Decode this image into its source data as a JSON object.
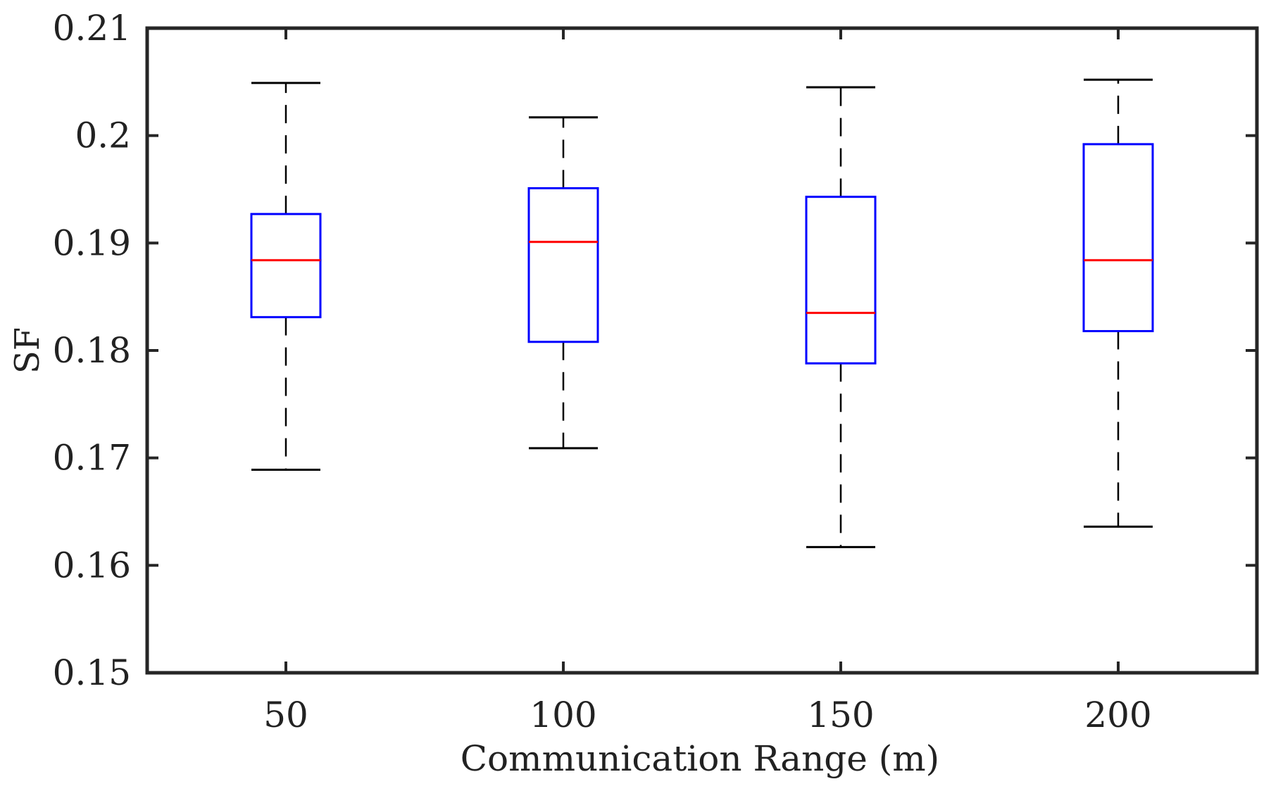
{
  "chart_data": {
    "type": "box",
    "title": "",
    "xlabel": "Communication Range (m)",
    "ylabel": "SF",
    "categories": [
      "50",
      "100",
      "150",
      "200"
    ],
    "yticks": [
      "0.15",
      "0.16",
      "0.17",
      "0.18",
      "0.19",
      "0.2",
      "0.21"
    ],
    "ylim": [
      0.15,
      0.21
    ],
    "grid": false,
    "boxes": [
      {
        "category": "50",
        "whisker_low": 0.1689,
        "q1": 0.1831,
        "median": 0.1884,
        "q3": 0.1927,
        "whisker_high": 0.2049
      },
      {
        "category": "100",
        "whisker_low": 0.1709,
        "q1": 0.1808,
        "median": 0.1901,
        "q3": 0.1951,
        "whisker_high": 0.2017
      },
      {
        "category": "150",
        "whisker_low": 0.1617,
        "q1": 0.1788,
        "median": 0.1835,
        "q3": 0.1943,
        "whisker_high": 0.2045
      },
      {
        "category": "200",
        "whisker_low": 0.1636,
        "q1": 0.1818,
        "median": 0.1884,
        "q3": 0.1992,
        "whisker_high": 0.2052
      }
    ],
    "colors": {
      "box": "#0000ff",
      "median": "#ff0000",
      "whisker": "#000000",
      "axes": "#262626"
    }
  }
}
